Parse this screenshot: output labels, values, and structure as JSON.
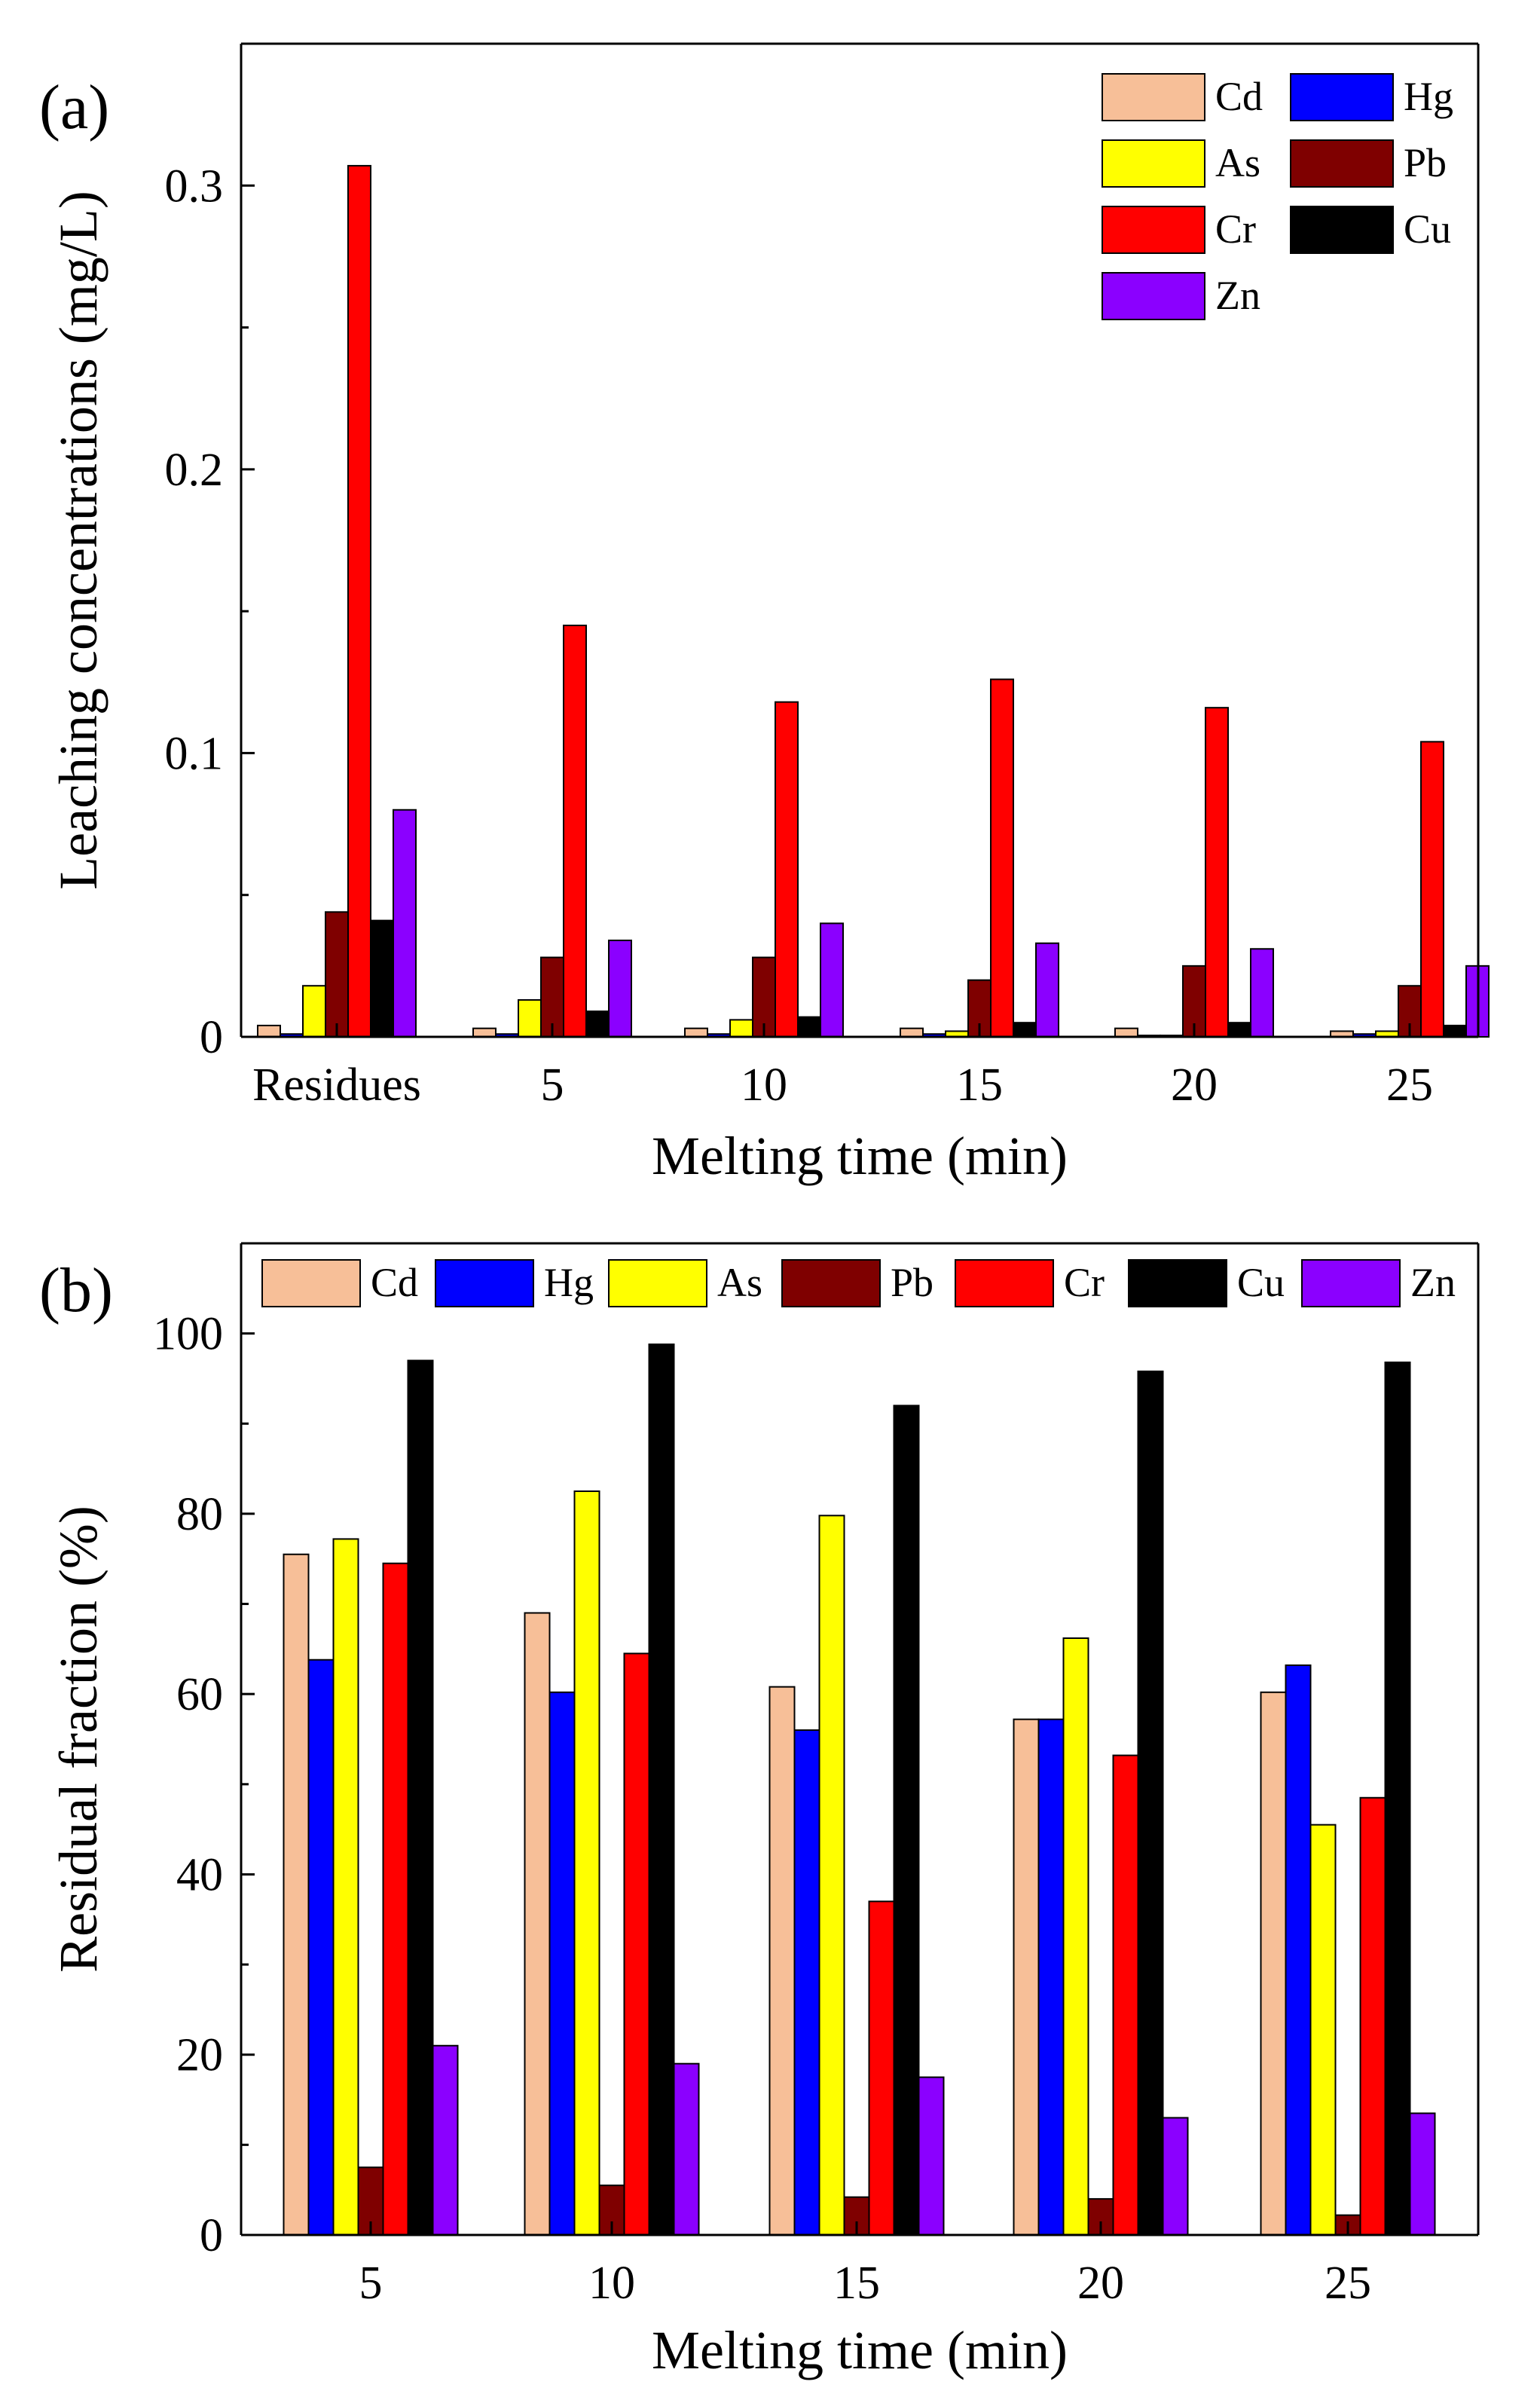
{
  "colors": {
    "Cd": "#f7bf98",
    "Hg": "#0000ff",
    "As": "#ffff00",
    "Pb": "#7f0000",
    "Cr": "#ff0000",
    "Cu": "#000000",
    "Zn": "#8b00ff"
  },
  "chart_data": [
    {
      "panel_label": "(a)",
      "type": "bar",
      "xlabel": "Melting time (min)",
      "ylabel": "Leaching concentrations (mg/L)",
      "ylim": [
        0,
        0.35
      ],
      "yticks": [
        "0",
        "0.1",
        "0.2",
        "0.3"
      ],
      "ytick_values": [
        0,
        0.1,
        0.2,
        0.3
      ],
      "categories": [
        "Residues",
        "5",
        "10",
        "15",
        "20",
        "25"
      ],
      "grid": false,
      "legend_position": "top-right",
      "legend_columns": 2,
      "series": [
        {
          "name": "Cd",
          "values": [
            0.004,
            0.003,
            0.003,
            0.003,
            0.003,
            0.002
          ]
        },
        {
          "name": "Hg",
          "values": [
            0.001,
            0.001,
            0.001,
            0.001,
            0.0005,
            0.001
          ]
        },
        {
          "name": "As",
          "values": [
            0.018,
            0.013,
            0.006,
            0.002,
            0.0005,
            0.002
          ]
        },
        {
          "name": "Pb",
          "values": [
            0.044,
            0.028,
            0.028,
            0.02,
            0.025,
            0.018
          ]
        },
        {
          "name": "Cr",
          "values": [
            0.307,
            0.145,
            0.118,
            0.126,
            0.116,
            0.104
          ]
        },
        {
          "name": "Cu",
          "values": [
            0.041,
            0.009,
            0.007,
            0.005,
            0.005,
            0.004
          ]
        },
        {
          "name": "Zn",
          "values": [
            0.08,
            0.034,
            0.04,
            0.033,
            0.031,
            0.025
          ]
        }
      ]
    },
    {
      "panel_label": "(b)",
      "type": "bar",
      "xlabel": "Melting time (min)",
      "ylabel": "Residual fraction (%)",
      "ylim": [
        0,
        110
      ],
      "yticks": [
        "0",
        "20",
        "40",
        "60",
        "80",
        "100"
      ],
      "ytick_values": [
        0,
        20,
        40,
        60,
        80,
        100
      ],
      "categories": [
        "5",
        "10",
        "15",
        "20",
        "25"
      ],
      "grid": false,
      "legend_position": "top",
      "legend_columns": 7,
      "series": [
        {
          "name": "Cd",
          "values": [
            75.5,
            69.0,
            60.8,
            57.2,
            60.2
          ]
        },
        {
          "name": "Hg",
          "values": [
            63.8,
            60.2,
            56.0,
            57.2,
            63.2
          ]
        },
        {
          "name": "As",
          "values": [
            77.2,
            82.5,
            79.8,
            66.2,
            45.5
          ]
        },
        {
          "name": "Pb",
          "values": [
            7.5,
            5.5,
            4.2,
            4.0,
            2.2
          ]
        },
        {
          "name": "Cr",
          "values": [
            74.5,
            64.5,
            37.0,
            53.2,
            48.5
          ]
        },
        {
          "name": "Cu",
          "values": [
            97.0,
            98.8,
            92.0,
            95.8,
            96.8
          ]
        },
        {
          "name": "Zn",
          "values": [
            21.0,
            19.0,
            17.5,
            13.0,
            13.5
          ]
        }
      ]
    }
  ]
}
